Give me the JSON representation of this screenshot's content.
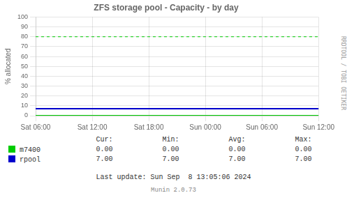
{
  "chart_data": {
    "type": "line",
    "title": "ZFS storage pool - Capacity - by day",
    "y_label": "% allocated",
    "categories": [
      "Sat 06:00",
      "Sat 12:00",
      "Sat 18:00",
      "Sun 00:00",
      "Sun 06:00",
      "Sun 12:00"
    ],
    "series": [
      {
        "name": "m7400",
        "color": "#00cc00",
        "values": [
          0.0,
          0.0,
          0.0,
          0.0,
          0.0,
          0.0
        ],
        "stats": {
          "values": [
            0.0,
            0.0,
            0.0,
            0.0
          ],
          "value_labels": [
            "0.00",
            "0.00",
            "0.00",
            "0.00"
          ]
        }
      },
      {
        "name": "rpool",
        "color": "#0000cc",
        "values": [
          7.0,
          7.0,
          7.0,
          7.0,
          7.0,
          7.0
        ],
        "stats": {
          "values": [
            7.0,
            7.0,
            7.0,
            7.0
          ],
          "value_labels": [
            "7.00",
            "7.00",
            "7.00",
            "7.00"
          ]
        }
      }
    ],
    "stat_headers": [
      "Cur:",
      "Min:",
      "Avg:",
      "Max:"
    ],
    "thresholds": [
      {
        "value": 80,
        "color": "#00cc00",
        "line_style": "dashed"
      }
    ],
    "ylim": [
      0,
      100
    ],
    "yticks": [
      0,
      10,
      20,
      30,
      40,
      50,
      60,
      70,
      80,
      90,
      100
    ],
    "grid": true,
    "annotations": [
      "Last update: Sun Sep  8 13:05:06 2024",
      "Munin 2.0.73",
      "RRDTOOL / TOBI OETIKER"
    ]
  }
}
